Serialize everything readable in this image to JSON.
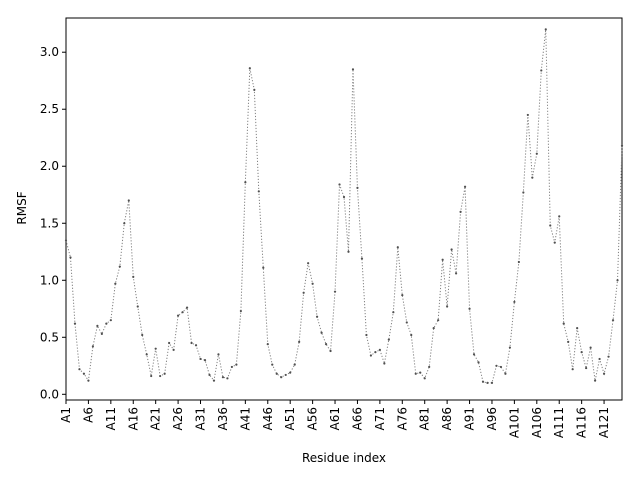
{
  "chart_data": {
    "type": "line",
    "xlabel": "Residue index",
    "ylabel": "RMSF",
    "ylim": [
      -0.05,
      3.3
    ],
    "y_ticks": [
      "0.0",
      "0.5",
      "1.0",
      "1.5",
      "2.0",
      "2.5",
      "3.0"
    ],
    "x_ticks": [
      "A1",
      "A6",
      "A11",
      "A16",
      "A21",
      "A26",
      "A31",
      "A36",
      "A41",
      "A46",
      "A51",
      "A56",
      "A61",
      "A66",
      "A71",
      "A76",
      "A81",
      "A86",
      "A91",
      "A96",
      "A101",
      "A106",
      "A111",
      "A116",
      "A121"
    ],
    "grid": false,
    "line_style": "dotted",
    "series_color": "#808080",
    "marker_color": "#505050",
    "values": [
      1.35,
      1.2,
      0.62,
      0.22,
      0.18,
      0.12,
      0.42,
      0.6,
      0.53,
      0.62,
      0.65,
      0.97,
      1.12,
      1.5,
      1.7,
      1.03,
      0.77,
      0.52,
      0.35,
      0.16,
      0.4,
      0.16,
      0.18,
      0.45,
      0.39,
      0.69,
      0.72,
      0.76,
      0.45,
      0.43,
      0.31,
      0.3,
      0.17,
      0.12,
      0.35,
      0.15,
      0.14,
      0.24,
      0.26,
      0.73,
      1.86,
      2.86,
      2.67,
      1.78,
      1.11,
      0.44,
      0.26,
      0.18,
      0.15,
      0.17,
      0.19,
      0.26,
      0.46,
      0.89,
      1.15,
      0.97,
      0.68,
      0.54,
      0.44,
      0.38,
      0.9,
      1.84,
      1.73,
      1.25,
      2.85,
      1.81,
      1.19,
      0.52,
      0.34,
      0.37,
      0.39,
      0.27,
      0.48,
      0.72,
      1.29,
      0.87,
      0.63,
      0.52,
      0.18,
      0.19,
      0.14,
      0.24,
      0.58,
      0.65,
      1.18,
      0.77,
      1.27,
      1.06,
      1.6,
      1.82,
      0.75,
      0.35,
      0.28,
      0.11,
      0.1,
      0.1,
      0.25,
      0.24,
      0.18,
      0.41,
      0.81,
      1.16,
      1.77,
      2.45,
      1.9,
      2.11,
      2.84,
      3.2,
      1.48,
      1.33,
      1.56,
      0.62,
      0.46,
      0.22,
      0.58,
      0.37,
      0.23,
      0.41,
      0.12,
      0.31,
      0.18,
      0.33,
      0.65,
      1.0,
      2.18
    ]
  }
}
